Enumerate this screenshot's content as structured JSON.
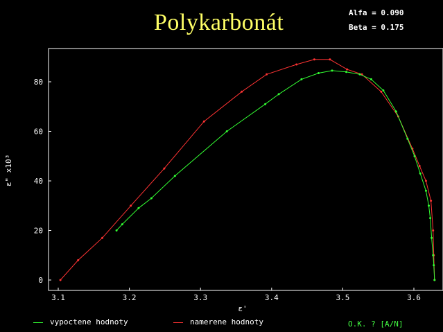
{
  "header": {
    "title": "Polykarbonát",
    "alfa": "Alfa = 0.090",
    "beta": "Beta = 0.175"
  },
  "legend": {
    "calculated": "vypoctene hodnoty",
    "measured": "namerene hodnoty"
  },
  "status": "O.K. ? [A/N]",
  "colors": {
    "calculated": "#33ff33",
    "measured": "#ff3333",
    "axes": "#ffffff",
    "title": "#ffff66"
  },
  "chart_data": {
    "type": "line",
    "xlabel": "ε'",
    "ylabel": "ε\" x10³",
    "xlim": [
      3.1,
      3.63
    ],
    "ylim": [
      0,
      90
    ],
    "xticks": [
      "3.1",
      "3.2",
      "3.3",
      "3.4",
      "3.5",
      "3.6"
    ],
    "yticks": [
      "0",
      "20",
      "40",
      "60",
      "80"
    ],
    "grid": false,
    "series": [
      {
        "name": "namerene hodnoty",
        "points": [
          [
            3.103,
            0
          ],
          [
            3.128,
            8
          ],
          [
            3.162,
            17
          ],
          [
            3.202,
            30
          ],
          [
            3.249,
            45
          ],
          [
            3.305,
            64
          ],
          [
            3.358,
            76
          ],
          [
            3.393,
            83
          ],
          [
            3.435,
            87
          ],
          [
            3.46,
            89
          ],
          [
            3.482,
            89
          ],
          [
            3.506,
            85
          ],
          [
            3.527,
            83
          ],
          [
            3.554,
            76
          ],
          [
            3.578,
            66
          ],
          [
            3.598,
            53
          ],
          [
            3.608,
            46
          ],
          [
            3.617,
            40
          ],
          [
            3.624,
            32
          ],
          [
            3.627,
            20
          ],
          [
            3.628,
            10
          ],
          [
            3.629,
            0
          ]
        ]
      },
      {
        "name": "vypoctene hodnoty",
        "points": [
          [
            3.182,
            20
          ],
          [
            3.19,
            22.5
          ],
          [
            3.213,
            29
          ],
          [
            3.231,
            33
          ],
          [
            3.264,
            42
          ],
          [
            3.337,
            60
          ],
          [
            3.391,
            71
          ],
          [
            3.41,
            75
          ],
          [
            3.442,
            81
          ],
          [
            3.466,
            83.5
          ],
          [
            3.485,
            84.5
          ],
          [
            3.505,
            84
          ],
          [
            3.524,
            83
          ],
          [
            3.54,
            81
          ],
          [
            3.557,
            76.5
          ],
          [
            3.575,
            68
          ],
          [
            3.591,
            57
          ],
          [
            3.601,
            50
          ],
          [
            3.609,
            43
          ],
          [
            3.617,
            36
          ],
          [
            3.621,
            30
          ],
          [
            3.623,
            25
          ],
          [
            3.625,
            17
          ],
          [
            3.627,
            10
          ],
          [
            3.628,
            6
          ],
          [
            3.629,
            0
          ]
        ]
      }
    ]
  }
}
